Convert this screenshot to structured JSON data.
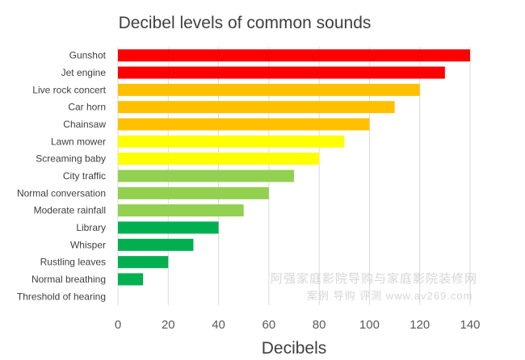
{
  "chart_data": {
    "type": "bar",
    "orientation": "horizontal",
    "title": "Decibel levels of common sounds",
    "xlabel": "Decibels",
    "ylabel": "",
    "xlim": [
      0,
      140
    ],
    "xticks": [
      0,
      20,
      40,
      60,
      80,
      100,
      120,
      140
    ],
    "grid": true,
    "categories": [
      "Gunshot",
      "Jet engine",
      "Live rock concert",
      "Car horn",
      "Chainsaw",
      "Lawn mower",
      "Screaming baby",
      "City traffic",
      "Normal conversation",
      "Moderate rainfall",
      "Library",
      "Whisper",
      "Rustling leaves",
      "Normal breathing",
      "Threshold of hearing"
    ],
    "values": [
      140,
      130,
      120,
      110,
      100,
      90,
      80,
      70,
      60,
      50,
      40,
      30,
      20,
      10,
      0
    ],
    "colors": [
      "#FF0000",
      "#FF0000",
      "#FFC000",
      "#FFC000",
      "#FFC000",
      "#FFFF00",
      "#FFFF00",
      "#92D050",
      "#92D050",
      "#92D050",
      "#00B050",
      "#00B050",
      "#00B050",
      "#00B050",
      "#00B050"
    ]
  },
  "watermark": {
    "line1": "阿强家庭影院导购与家庭影院装修网",
    "line2": "案例  导购  评测  www.av269.com"
  }
}
